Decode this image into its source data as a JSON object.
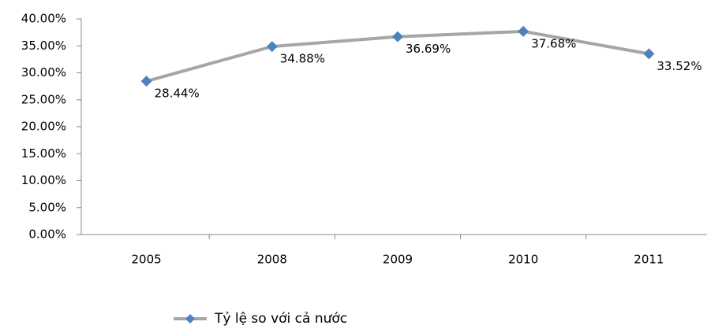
{
  "chart_data": {
    "type": "line",
    "categories": [
      "2005",
      "2008",
      "2009",
      "2010",
      "2011"
    ],
    "series": [
      {
        "name": "Tỷ lệ so với cả nước",
        "color": "#a6a6a6",
        "marker_color": "#4f81bd",
        "values": [
          28.44,
          34.88,
          36.69,
          37.68,
          33.52
        ],
        "value_labels": [
          "28.44%",
          "34.88%",
          "36.69%",
          "37.68%",
          "33.52%"
        ]
      }
    ],
    "ylim": [
      0,
      40
    ],
    "yticks": [
      {
        "value": 0,
        "label": "0.00%"
      },
      {
        "value": 5,
        "label": "5.00%"
      },
      {
        "value": 10,
        "label": "10.00%"
      },
      {
        "value": 15,
        "label": "15.00%"
      },
      {
        "value": 20,
        "label": "20.00%"
      },
      {
        "value": 25,
        "label": "25.00%"
      },
      {
        "value": 30,
        "label": "30.00%"
      },
      {
        "value": 35,
        "label": "35.00%"
      },
      {
        "value": 40,
        "label": "40.00%"
      }
    ],
    "grid": false,
    "legend": "bottom"
  }
}
